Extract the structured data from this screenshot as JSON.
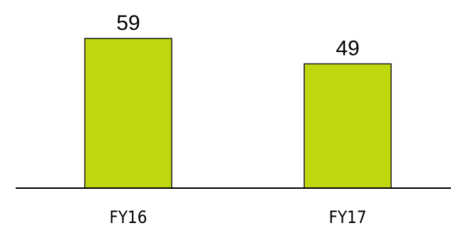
{
  "chart_data": {
    "type": "bar",
    "categories": [
      "FY16",
      "FY17"
    ],
    "values": [
      59,
      49
    ],
    "ylim": [
      0,
      59
    ],
    "title": "",
    "xlabel": "",
    "ylabel": "",
    "grid": false,
    "legend": "none",
    "bar_color": "#bfd70e",
    "data_labels": true
  }
}
